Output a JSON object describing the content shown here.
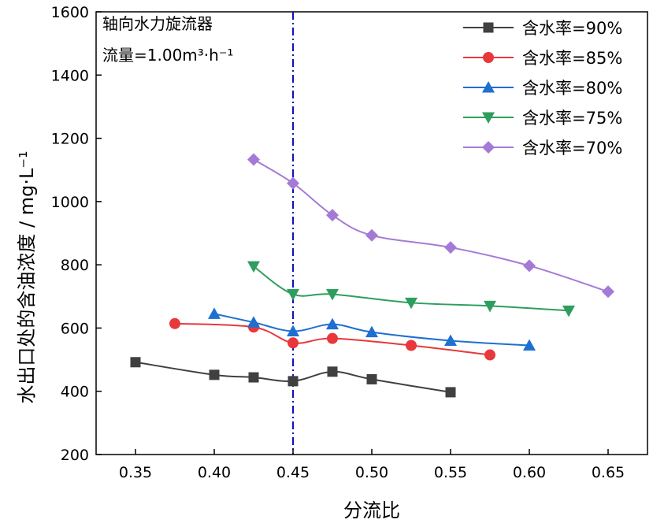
{
  "chart_data": {
    "type": "line",
    "xlabel": "分流比",
    "ylabel": "水出口处的含油浓度 / mg·L⁻¹",
    "xlim": [
      0.325,
      0.675
    ],
    "ylim": [
      200,
      1600
    ],
    "xticks": [
      0.35,
      0.4,
      0.45,
      0.5,
      0.55,
      0.6,
      0.65
    ],
    "xtick_labels": [
      "0.35",
      "0.40",
      "0.45",
      "0.50",
      "0.55",
      "0.60",
      "0.65"
    ],
    "yticks": [
      200,
      400,
      600,
      800,
      1000,
      1200,
      1400,
      1600
    ],
    "ytick_labels": [
      "200",
      "400",
      "600",
      "800",
      "1000",
      "1200",
      "1400",
      "1600"
    ],
    "grid": false,
    "legend_position": "top-right",
    "annotation": {
      "line1": "轴向水力旋流器",
      "line2": "流量=1.00m³·h⁻¹"
    },
    "reference_line": {
      "x": 0.45,
      "color": "#1010c0",
      "style": "dash-dot"
    },
    "series": [
      {
        "name": "含水率=90%",
        "color": "#404040",
        "marker": "square",
        "x": [
          0.35,
          0.4,
          0.425,
          0.45,
          0.475,
          0.5,
          0.55
        ],
        "y": [
          492,
          452,
          444,
          432,
          462,
          438,
          397
        ]
      },
      {
        "name": "含水率=85%",
        "color": "#e8383c",
        "marker": "circle",
        "x": [
          0.375,
          0.425,
          0.45,
          0.475,
          0.525,
          0.575
        ],
        "y": [
          614,
          603,
          553,
          567,
          545,
          515
        ]
      },
      {
        "name": "含水率=80%",
        "color": "#1e6fd0",
        "marker": "triangle-up",
        "x": [
          0.4,
          0.425,
          0.45,
          0.475,
          0.5,
          0.55,
          0.6
        ],
        "y": [
          645,
          618,
          590,
          612,
          587,
          560,
          545
        ]
      },
      {
        "name": "含水率=75%",
        "color": "#2e9e5e",
        "marker": "triangle-down",
        "x": [
          0.425,
          0.45,
          0.475,
          0.525,
          0.575,
          0.625
        ],
        "y": [
          795,
          707,
          707,
          680,
          670,
          655
        ]
      },
      {
        "name": "含水率=70%",
        "color": "#a57ad6",
        "marker": "diamond",
        "x": [
          0.425,
          0.45,
          0.475,
          0.5,
          0.55,
          0.6,
          0.65
        ],
        "y": [
          1133,
          1058,
          957,
          893,
          855,
          797,
          715
        ]
      }
    ]
  }
}
